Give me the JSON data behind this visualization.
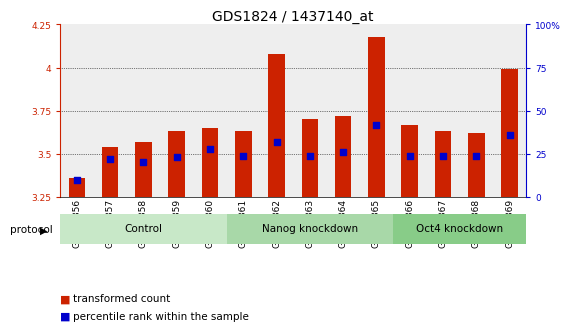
{
  "title": "GDS1824 / 1437140_at",
  "samples": [
    "GSM94856",
    "GSM94857",
    "GSM94858",
    "GSM94859",
    "GSM94860",
    "GSM94861",
    "GSM94862",
    "GSM94863",
    "GSM94864",
    "GSM94865",
    "GSM94866",
    "GSM94867",
    "GSM94868",
    "GSM94869"
  ],
  "transformed_count": [
    3.36,
    3.54,
    3.57,
    3.63,
    3.65,
    3.63,
    4.08,
    3.7,
    3.72,
    4.18,
    3.67,
    3.63,
    3.62,
    3.99
  ],
  "percentile_rank": [
    10,
    22,
    20,
    23,
    28,
    24,
    32,
    24,
    26,
    42,
    24,
    24,
    24,
    36
  ],
  "ymin": 3.25,
  "ymax": 4.25,
  "yticks": [
    3.25,
    3.5,
    3.75,
    4.0,
    4.25
  ],
  "ytick_labels": [
    "3.25",
    "3.5",
    "3.75",
    "4",
    "4.25"
  ],
  "right_yticks": [
    0,
    25,
    50,
    75,
    100
  ],
  "right_ytick_labels": [
    "0",
    "25",
    "50",
    "75",
    "100%"
  ],
  "groups": [
    {
      "name": "Control",
      "start": 0,
      "end": 4,
      "color": "#c8e8c8"
    },
    {
      "name": "Nanog knockdown",
      "start": 5,
      "end": 9,
      "color": "#a8d8a8"
    },
    {
      "name": "Oct4 knockdown",
      "start": 10,
      "end": 13,
      "color": "#88cc88"
    }
  ],
  "bar_color": "#cc2200",
  "dot_color": "#0000cc",
  "bar_bottom": 3.25,
  "title_fontsize": 10,
  "tick_fontsize": 6.5,
  "label_fontsize": 7.5,
  "group_fontsize": 7.5
}
